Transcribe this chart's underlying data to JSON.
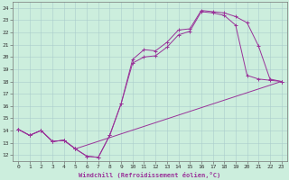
{
  "xlabel": "Windchill (Refroidissement éolien,°C)",
  "xlim": [
    -0.5,
    23.5
  ],
  "ylim": [
    11.5,
    24.5
  ],
  "xticks": [
    0,
    1,
    2,
    3,
    4,
    5,
    6,
    7,
    8,
    9,
    10,
    11,
    12,
    13,
    14,
    15,
    16,
    17,
    18,
    19,
    20,
    21,
    22,
    23
  ],
  "yticks": [
    12,
    13,
    14,
    15,
    16,
    17,
    18,
    19,
    20,
    21,
    22,
    23,
    24
  ],
  "bg_color": "#cceedd",
  "line_color": "#993399",
  "line1_x": [
    0,
    1,
    2,
    3,
    4,
    5,
    6,
    7,
    8,
    9,
    10,
    11,
    12,
    13,
    14,
    15,
    16,
    17,
    18,
    19,
    20,
    21,
    22,
    23
  ],
  "line1_y": [
    14.1,
    13.6,
    14.0,
    13.1,
    13.2,
    12.5,
    11.9,
    11.8,
    13.6,
    16.2,
    19.8,
    20.6,
    20.5,
    21.2,
    22.2,
    22.3,
    23.8,
    23.7,
    23.6,
    23.3,
    22.8,
    20.9,
    18.2,
    18.0
  ],
  "line2_x": [
    0,
    1,
    2,
    3,
    4,
    5,
    6,
    7,
    8,
    9,
    10,
    11,
    12,
    13,
    14,
    15,
    16,
    17,
    18,
    19,
    20,
    21,
    22,
    23
  ],
  "line2_y": [
    14.1,
    13.6,
    14.0,
    13.1,
    13.2,
    12.5,
    11.9,
    11.8,
    13.6,
    16.2,
    19.5,
    20.0,
    20.1,
    20.8,
    21.8,
    22.1,
    23.7,
    23.6,
    23.4,
    22.6,
    18.5,
    18.2,
    18.1,
    18.0
  ],
  "line3_x": [
    0,
    1,
    2,
    3,
    4,
    5,
    23
  ],
  "line3_y": [
    14.1,
    13.6,
    14.0,
    13.1,
    13.2,
    12.5,
    18.0
  ]
}
